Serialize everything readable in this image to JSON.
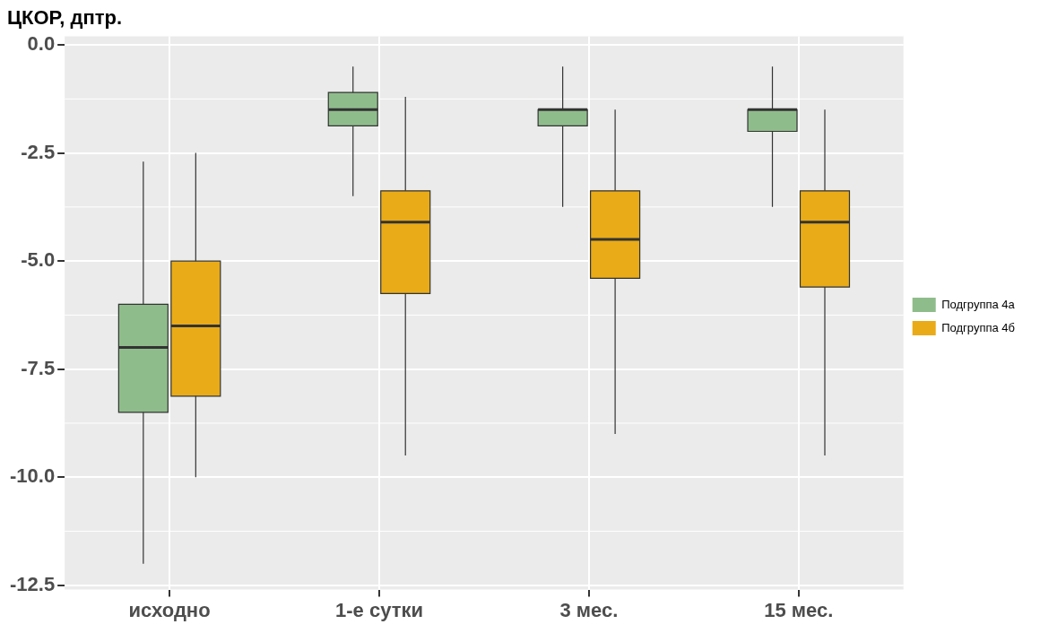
{
  "chart_data": {
    "type": "box",
    "title": "ЦКОР, дптр.",
    "categories": [
      "исходно",
      "1-е сутки",
      "3 мес.",
      "15 мес."
    ],
    "series": [
      {
        "name": "Подгруппа 4а",
        "color": "#8fbc8b",
        "boxes": [
          {
            "low": -12.0,
            "q1": -8.5,
            "median": -7.0,
            "q3": -6.0,
            "high": -2.7
          },
          {
            "low": -3.5,
            "q1": -1.875,
            "median": -1.5,
            "q3": -1.1,
            "high": -0.5
          },
          {
            "low": -3.75,
            "q1": -1.875,
            "median": -1.5,
            "q3": -1.5,
            "high": -0.5
          },
          {
            "low": -3.75,
            "q1": -2.0,
            "median": -1.5,
            "q3": -1.5,
            "high": -0.5
          }
        ]
      },
      {
        "name": "Подгруппа 4б",
        "color": "#e9ab17",
        "boxes": [
          {
            "low": -10.0,
            "q1": -8.125,
            "median": -6.5,
            "q3": -5.0,
            "high": -2.5
          },
          {
            "low": -9.5,
            "q1": -5.75,
            "median": -4.1,
            "q3": -3.375,
            "high": -1.2
          },
          {
            "low": -9.0,
            "q1": -5.4,
            "median": -4.5,
            "q3": -3.375,
            "high": -1.5
          },
          {
            "low": -9.5,
            "q1": -5.6,
            "median": -4.1,
            "q3": -3.375,
            "high": -1.5
          }
        ]
      }
    ],
    "ylim": [
      -12.6,
      0.2
    ],
    "yticks": [
      {
        "value": 0,
        "label": "0.0"
      },
      -2.5,
      {
        "value": -5,
        "label": "-5.0"
      },
      -7.5,
      {
        "value": -10,
        "label": "-10.0"
      },
      -12.5
    ],
    "grid": true,
    "legend": "right"
  }
}
